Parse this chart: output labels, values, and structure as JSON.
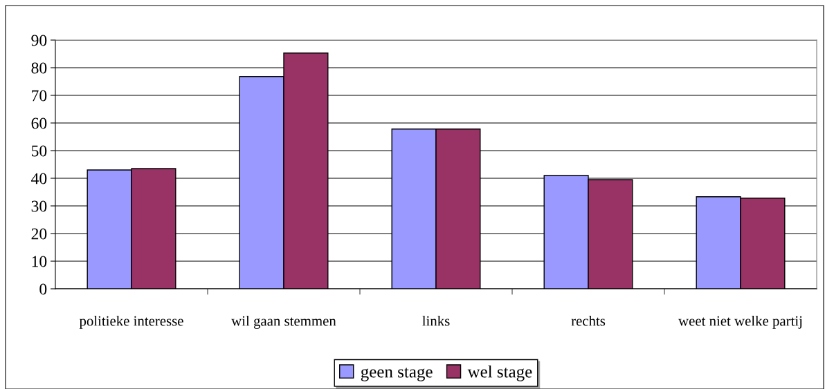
{
  "chart_data": {
    "type": "bar",
    "categories": [
      "politieke interesse",
      "wil gaan stemmen",
      "links",
      "rechts",
      "weet niet welke partij"
    ],
    "series": [
      {
        "name": "geen stage",
        "color": "#9999ff",
        "values": [
          43,
          76.8,
          57.8,
          41,
          33.3
        ]
      },
      {
        "name": "wel stage",
        "color": "#993366",
        "values": [
          43.5,
          85.3,
          57.8,
          39.5,
          32.8
        ]
      }
    ],
    "ylim": [
      0,
      90
    ],
    "yticks": [
      0,
      10,
      20,
      30,
      40,
      50,
      60,
      70,
      80,
      90
    ],
    "grid": "y",
    "legend": "bottom"
  }
}
